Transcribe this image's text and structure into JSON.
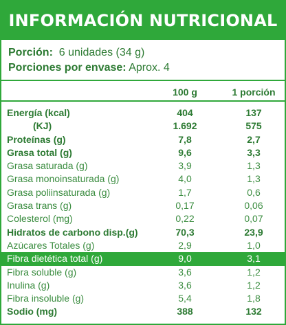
{
  "title": "INFORMACIÓN NUTRICIONAL",
  "serving": {
    "portion_label": "Porción:",
    "portion_value": "6 unidades (34 g)",
    "per_pack_label": "Porciones por envase:",
    "per_pack_value": "Aprox. 4"
  },
  "columns": {
    "per100": "100 g",
    "perPortion": "1 porción"
  },
  "rows": [
    {
      "name": "Energía (kcal)",
      "v100": "404",
      "vpor": "137",
      "bold": true
    },
    {
      "name": "(KJ)",
      "v100": "1.692",
      "vpor": "575",
      "bold": true,
      "indent": true
    },
    {
      "name": "Proteínas (g)",
      "v100": "7,8",
      "vpor": "2,7",
      "bold": true
    },
    {
      "name": "Grasa total (g)",
      "v100": "9,6",
      "vpor": "3,3",
      "bold": true
    },
    {
      "name": "Grasa saturada (g)",
      "v100": "3,9",
      "vpor": "1,3"
    },
    {
      "name": "Grasa monoinsaturada (g)",
      "v100": "4,0",
      "vpor": "1,3"
    },
    {
      "name": "Grasa poliinsaturada (g)",
      "v100": "1,7",
      "vpor": "0,6"
    },
    {
      "name": "Grasa trans (g)",
      "v100": "0,17",
      "vpor": "0,06"
    },
    {
      "name": "Colesterol (mg)",
      "v100": "0,22",
      "vpor": "0,07"
    },
    {
      "name": "Hidratos de carbono disp.(g)",
      "v100": "70,3",
      "vpor": "23,9",
      "bold": true
    },
    {
      "name": "Azúcares Totales (g)",
      "v100": "2,9",
      "vpor": "1,0"
    },
    {
      "name": "Fibra dietética total (g)",
      "v100": "9,0",
      "vpor": "3,1",
      "highlight": true
    },
    {
      "name": "Fibra soluble (g)",
      "v100": "3,6",
      "vpor": "1,2"
    },
    {
      "name": "Inulina (g)",
      "v100": "3,6",
      "vpor": "1,2"
    },
    {
      "name": "Fibra insoluble (g)",
      "v100": "5,4",
      "vpor": "1,8"
    },
    {
      "name": "Sodio (mg)",
      "v100": "388",
      "vpor": "132",
      "bold": true
    }
  ],
  "colors": {
    "green": "#2fa83a",
    "text_green": "#2c7a32"
  }
}
